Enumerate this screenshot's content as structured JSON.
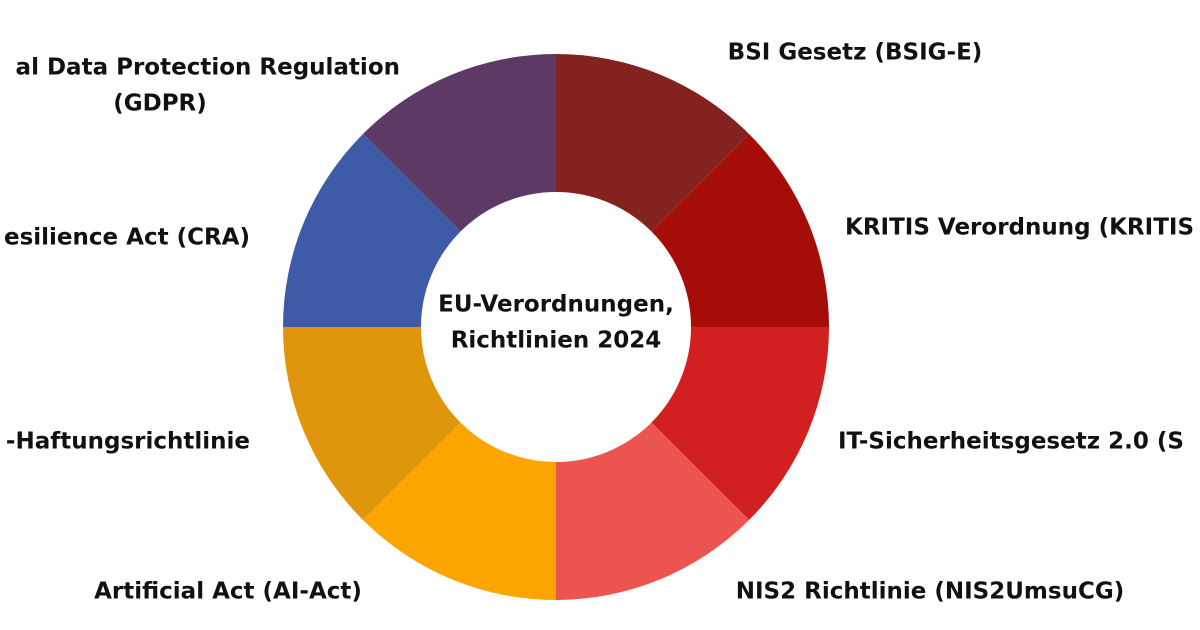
{
  "chart_data": {
    "type": "donut",
    "title": [
      "EU-Verordnungen,",
      "Richtlinien 2024"
    ],
    "categories": [
      [
        "BSI Gesetz (BSIG-E)"
      ],
      [
        "KRITIS Verordnung (KRITIS"
      ],
      [
        "IT-Sicherheitsgesetz 2.0 (S"
      ],
      [
        "NIS2 Richtlinie (NIS2UmsuCG)"
      ],
      [
        "Artificial Act (AI-Act)"
      ],
      [
        "-Haftungsrichtlinie"
      ],
      [
        "esilience Act (CRA)"
      ],
      [
        "al Data Protection Regulation",
        "(GDPR)"
      ]
    ],
    "values": [
      12.5,
      12.5,
      12.5,
      12.5,
      12.5,
      12.5,
      12.5,
      12.5
    ],
    "colors": [
      "#84221f",
      "#a50d08",
      "#d21f1f",
      "#ec5450",
      "#fca400",
      "#e0960c",
      "#3e5ba8",
      "#5d3966"
    ]
  }
}
